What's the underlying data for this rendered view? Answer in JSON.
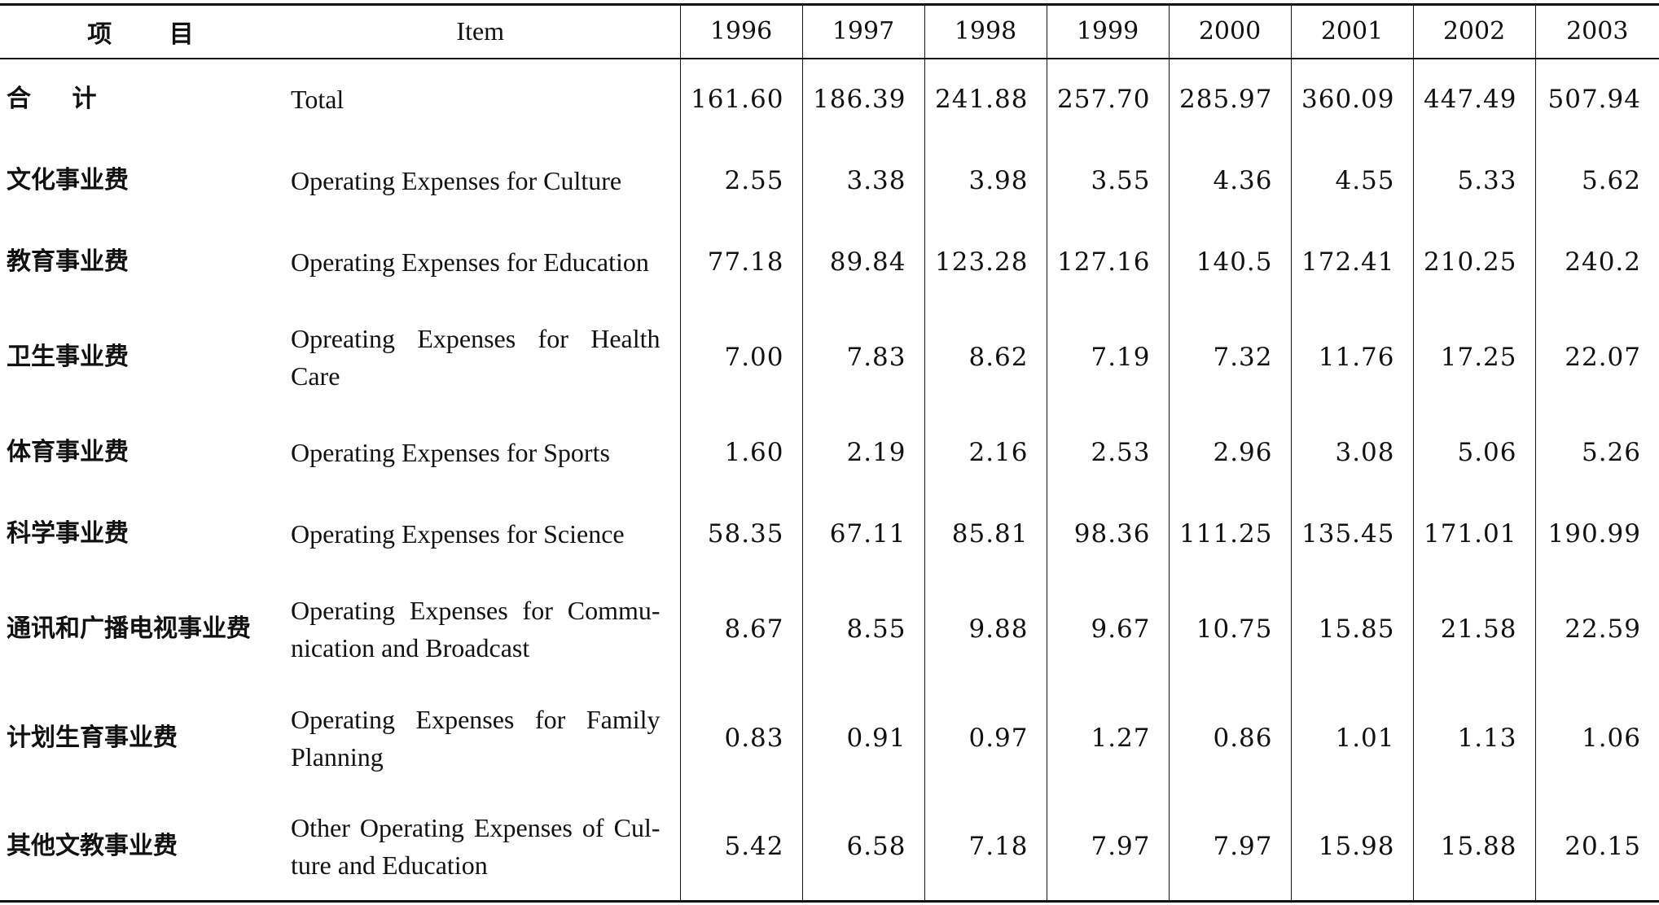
{
  "header": {
    "cn_label": "项 目",
    "en_label": "Item",
    "years": [
      "1996",
      "1997",
      "1998",
      "1999",
      "2000",
      "2001",
      "2002",
      "2003"
    ]
  },
  "rows": [
    {
      "cn": "合 计",
      "en": "Total",
      "values": [
        "161.60",
        "186.39",
        "241.88",
        "257.70",
        "285.97",
        "360.09",
        "447.49",
        "507.94"
      ]
    },
    {
      "cn": "文化事业费",
      "en": "Operating Expenses for Culture",
      "values": [
        "2.55",
        "3.38",
        "3.98",
        "3.55",
        "4.36",
        "4.55",
        "5.33",
        "5.62"
      ]
    },
    {
      "cn": "教育事业费",
      "en": "Operating Expenses for Education",
      "values": [
        "77.18",
        "89.84",
        "123.28",
        "127.16",
        "140.5",
        "172.41",
        "210.25",
        "240.2"
      ]
    },
    {
      "cn": "卫生事业费",
      "en": "Opreating Expenses for Health Care",
      "values": [
        "7.00",
        "7.83",
        "8.62",
        "7.19",
        "7.32",
        "11.76",
        "17.25",
        "22.07"
      ]
    },
    {
      "cn": "体育事业费",
      "en": "Operating Expenses for Sports",
      "values": [
        "1.60",
        "2.19",
        "2.16",
        "2.53",
        "2.96",
        "3.08",
        "5.06",
        "5.26"
      ]
    },
    {
      "cn": "科学事业费",
      "en": "Operating Expenses for Science",
      "values": [
        "58.35",
        "67.11",
        "85.81",
        "98.36",
        "111.25",
        "135.45",
        "171.01",
        "190.99"
      ]
    },
    {
      "cn": "通讯和广播电视事业费",
      "en": "Operating Expenses for Commu-nication and Broadcast",
      "values": [
        "8.67",
        "8.55",
        "9.88",
        "9.67",
        "10.75",
        "15.85",
        "21.58",
        "22.59"
      ]
    },
    {
      "cn": "计划生育事业费",
      "en": "Operating Expenses for Family Planning",
      "values": [
        "0.83",
        "0.91",
        "0.97",
        "1.27",
        "0.86",
        "1.01",
        "1.13",
        "1.06"
      ]
    },
    {
      "cn": "其他文教事业费",
      "en": "Other Operating Expenses of Cul-ture and Education",
      "values": [
        "5.42",
        "6.58",
        "7.18",
        "7.97",
        "7.97",
        "15.98",
        "15.88",
        "20.15"
      ]
    }
  ]
}
